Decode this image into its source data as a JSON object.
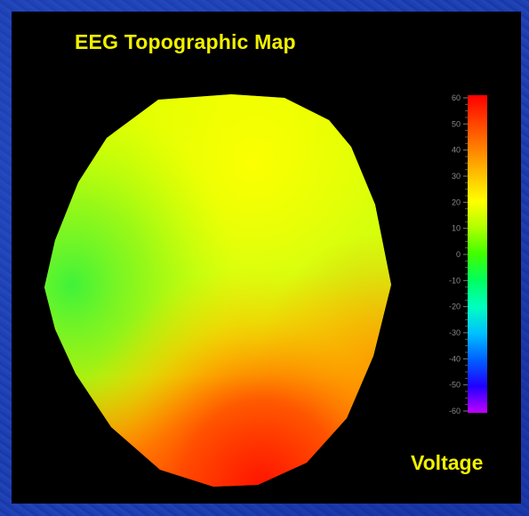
{
  "title": "EEG Topographic Map",
  "colorbar": {
    "label": "Voltage",
    "tick_labels": [
      "60",
      "50",
      "40",
      "30",
      "20",
      "10",
      "0",
      "-10",
      "-20",
      "-30",
      "-40",
      "-50",
      "-60"
    ],
    "colors": [
      "#ff0000",
      "#ff4000",
      "#ff8000",
      "#ffc000",
      "#ffff00",
      "#b0ff00",
      "#40ff00",
      "#00ff60",
      "#00ffc0",
      "#00c0ff",
      "#0060ff",
      "#2000ff",
      "#c000ff"
    ]
  },
  "head_map_colors": {
    "left": "#3ff23a",
    "top": "#e8ff00",
    "bottom": "#ff2a00"
  },
  "colors": {
    "title": "#f0f000",
    "background_panel": "#000000",
    "slide_background": "#1a3aa8"
  }
}
